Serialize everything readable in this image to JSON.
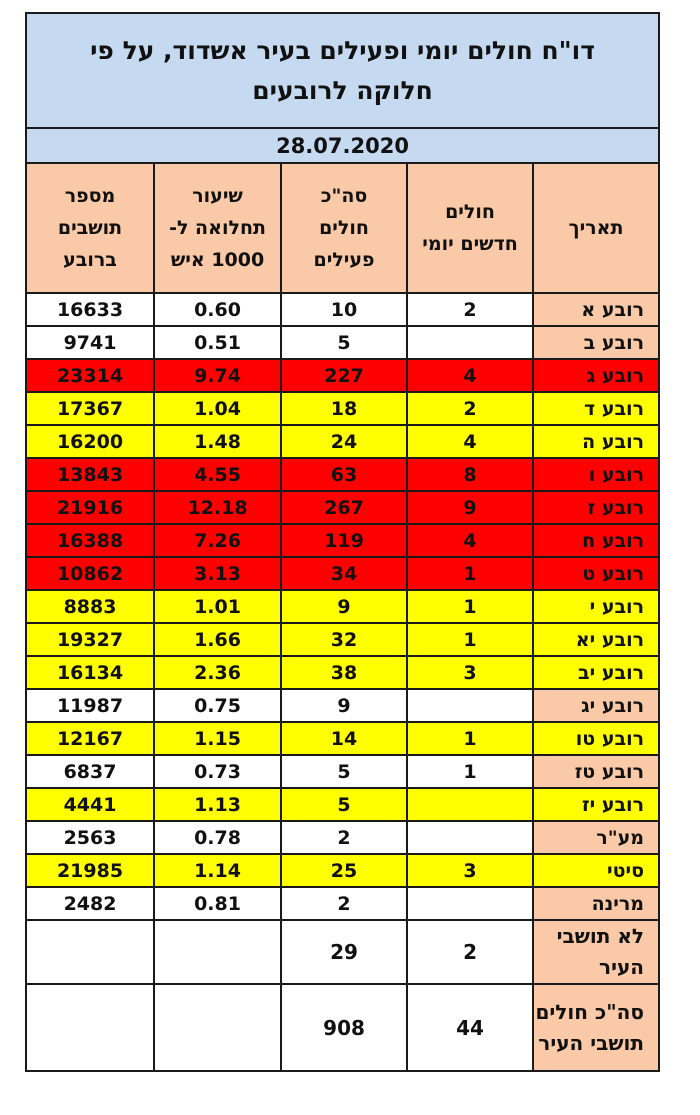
{
  "title": "דו\"ח חולים יומי ופעילים בעיר אשדוד, על פי חלוקה לרובעים",
  "date": "28.07.2020",
  "headers": {
    "area": "תאריך",
    "new_daily": "חולים חדשים יומי",
    "total_active": "סה\"כ חולים פעילים",
    "rate": "שיעור תחלואה ל- 1000 איש",
    "residents": "מספר תושבים ברובע"
  },
  "colors": {
    "red": "#ff0000",
    "yellow": "#ffff00",
    "white": "#ffffff",
    "peach": "#f9c9a8",
    "blue": "#c5d9f1"
  },
  "rows": [
    {
      "name": "רובע א",
      "new": "2",
      "active": "10",
      "rate": "0.60",
      "residents": "16633",
      "color": "white"
    },
    {
      "name": "רובע ב",
      "new": "",
      "active": "5",
      "rate": "0.51",
      "residents": "9741",
      "color": "white"
    },
    {
      "name": "רובע ג",
      "new": "4",
      "active": "227",
      "rate": "9.74",
      "residents": "23314",
      "color": "red"
    },
    {
      "name": "רובע ד",
      "new": "2",
      "active": "18",
      "rate": "1.04",
      "residents": "17367",
      "color": "yellow"
    },
    {
      "name": "רובע ה",
      "new": "4",
      "active": "24",
      "rate": "1.48",
      "residents": "16200",
      "color": "yellow"
    },
    {
      "name": "רובע ו",
      "new": "8",
      "active": "63",
      "rate": "4.55",
      "residents": "13843",
      "color": "red"
    },
    {
      "name": "רובע ז",
      "new": "9",
      "active": "267",
      "rate": "12.18",
      "residents": "21916",
      "color": "red"
    },
    {
      "name": "רובע ח",
      "new": "4",
      "active": "119",
      "rate": "7.26",
      "residents": "16388",
      "color": "red"
    },
    {
      "name": "רובע ט",
      "new": "1",
      "active": "34",
      "rate": "3.13",
      "residents": "10862",
      "color": "red"
    },
    {
      "name": "רובע י",
      "new": "1",
      "active": "9",
      "rate": "1.01",
      "residents": "8883",
      "color": "yellow"
    },
    {
      "name": "רובע יא",
      "new": "1",
      "active": "32",
      "rate": "1.66",
      "residents": "19327",
      "color": "yellow"
    },
    {
      "name": "רובע יב",
      "new": "3",
      "active": "38",
      "rate": "2.36",
      "residents": "16134",
      "color": "yellow"
    },
    {
      "name": "רובע יג",
      "new": "",
      "active": "9",
      "rate": "0.75",
      "residents": "11987",
      "color": "white"
    },
    {
      "name": "רובע טו",
      "new": "1",
      "active": "14",
      "rate": "1.15",
      "residents": "12167",
      "color": "yellow"
    },
    {
      "name": "רובע טז",
      "new": "1",
      "active": "5",
      "rate": "0.73",
      "residents": "6837",
      "color": "white"
    },
    {
      "name": "רובע יז",
      "new": "",
      "active": "5",
      "rate": "1.13",
      "residents": "4441",
      "color": "yellow"
    },
    {
      "name": "מע\"ר",
      "new": "",
      "active": "2",
      "rate": "0.78",
      "residents": "2563",
      "color": "white"
    },
    {
      "name": "סיטי",
      "new": "3",
      "active": "25",
      "rate": "1.14",
      "residents": "21985",
      "color": "yellow"
    },
    {
      "name": "מרינה",
      "new": "",
      "active": "2",
      "rate": "0.81",
      "residents": "2482",
      "color": "white"
    }
  ],
  "non_residents": {
    "name": "לא תושבי העיר",
    "new": "2",
    "active": "29"
  },
  "total": {
    "name": "סה\"כ חולים תושבי העיר",
    "new": "44",
    "active": "908"
  }
}
